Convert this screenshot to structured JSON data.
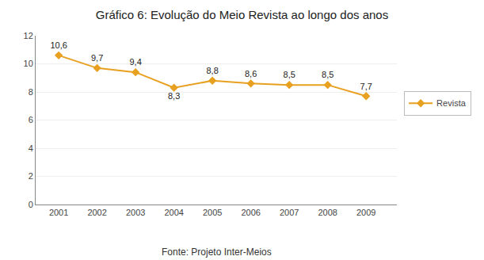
{
  "chart_data": {
    "type": "line",
    "title": "Gráfico 6: Evolução do Meio Revista ao longo dos anos",
    "annotations": [
      "Fonte: Projeto Inter-Meios"
    ],
    "x": [
      2001,
      2002,
      2003,
      2004,
      2005,
      2006,
      2007,
      2008,
      2009
    ],
    "series": [
      {
        "name": "Revista",
        "color": "#E8A020",
        "marker": "diamond",
        "values": [
          10.6,
          9.7,
          9.4,
          8.3,
          8.8,
          8.6,
          8.5,
          8.5,
          7.7
        ],
        "value_labels": [
          "10,6",
          "9,7",
          "9,4",
          "8,3",
          "8,8",
          "8,6",
          "8,5",
          "8,5",
          "7,7"
        ]
      }
    ],
    "xlim": [
      2000.4,
      2009.8
    ],
    "xticks": [
      2001,
      2002,
      2003,
      2004,
      2005,
      2006,
      2007,
      2008,
      2009
    ],
    "ylim": [
      0,
      12
    ],
    "yticks": [
      0,
      2,
      4,
      6,
      8,
      10,
      12
    ],
    "grid": true,
    "legend": "right",
    "data_labels": true
  }
}
